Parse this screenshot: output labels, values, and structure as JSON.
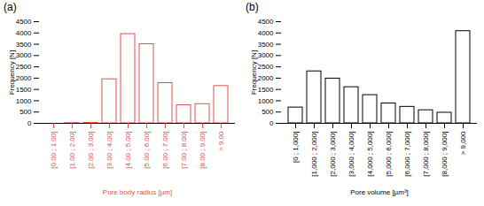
{
  "chart_data": [
    {
      "type": "bar",
      "title": "(a)",
      "x_label": "Pore body radius [µm]",
      "y_label": "Frequency [N]",
      "categories": [
        "[0.00 ; 1.00]",
        "[1.00 ; 2.00]",
        "[2.00 ; 3.00]",
        "[3.00 ; 4.00]",
        "[4.00 ; 5.00]",
        "[5.00 ; 6.00]",
        "[6.00 ; 7.00]",
        "[7.00 ; 8.00]",
        "[8.00 ; 9.00]",
        "> 9.00"
      ],
      "values": [
        0,
        10,
        20,
        1950,
        3950,
        3500,
        1780,
        800,
        850,
        1650
      ],
      "color": "#e05050",
      "ylim": [
        0,
        4500
      ],
      "yticks": [
        0,
        500,
        1000,
        1500,
        2000,
        2500,
        3000,
        3500,
        4000,
        4500
      ],
      "grid": false
    },
    {
      "type": "bar",
      "title": "(b)",
      "x_label": "Pore volume [µm³]",
      "y_label": "Frequency [N]",
      "categories": [
        "[0 ; 1,000]",
        "[1,000 ; 2,000]",
        "[2,000 ; 3,000]",
        "[3,000 ; 4,000]",
        "[4,000 ; 5,000]",
        "[5,000 ; 6,000]",
        "[6,000 ; 7,000]",
        "[7,000 ; 8,000]",
        "[8,000 ; 9,000]",
        "> 9,000"
      ],
      "values": [
        700,
        2300,
        1980,
        1600,
        1250,
        880,
        730,
        580,
        470,
        4080
      ],
      "color": "#000000",
      "ylim": [
        0,
        4500
      ],
      "yticks": [
        0,
        500,
        1000,
        1500,
        2000,
        2500,
        3000,
        3500,
        4000,
        4500
      ],
      "grid": false
    }
  ]
}
